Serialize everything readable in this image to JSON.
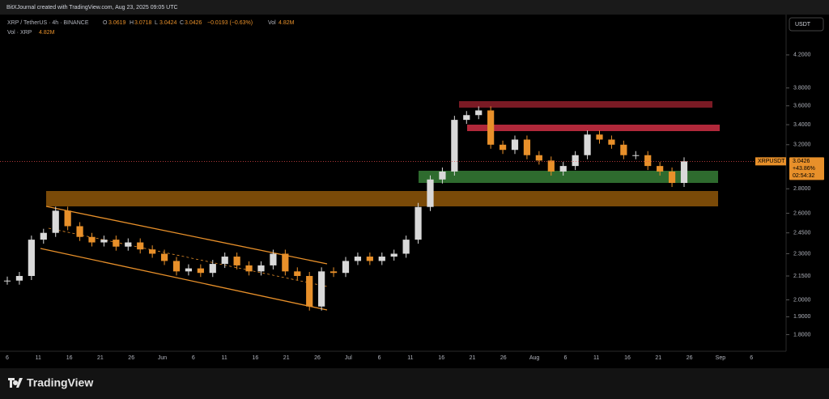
{
  "header": {
    "credit": "BitXJournal created with TradingView.com, Aug 23, 2025 09:05 UTC"
  },
  "legend": {
    "symbol": "XRP / TetherUS · 4h · BINANCE",
    "o_label": "O",
    "open": "3.0619",
    "h_label": "H",
    "high": "3.0718",
    "l_label": "L",
    "low": "3.0424",
    "c_label": "C",
    "close": "3.0426",
    "change": "−0.0193 (−0.63%)",
    "vol_label": "Vol",
    "vol": "4.82M"
  },
  "volume_legend": {
    "label": "Vol · XRP",
    "value": "4.82M"
  },
  "currency": "USDT",
  "price_tag": {
    "symbol": "XRPUSDT",
    "price": "3.0426",
    "change": "+43.86%",
    "countdown": "02:54:32"
  },
  "chart_data": {
    "type": "candlestick",
    "closes": [
      2.12,
      2.15,
      2.4,
      2.45,
      2.62,
      2.5,
      2.42,
      2.38,
      2.4,
      2.35,
      2.38,
      2.33,
      2.3,
      2.25,
      2.18,
      2.2,
      2.17,
      2.23,
      2.28,
      2.22,
      2.18,
      2.22,
      2.3,
      2.18,
      2.15,
      1.96,
      2.18,
      2.17,
      2.25,
      2.28,
      2.25,
      2.28,
      2.3,
      2.4,
      2.65,
      2.88,
      2.95,
      3.45,
      3.5,
      3.55,
      3.2,
      3.15,
      3.25,
      3.1,
      3.05,
      2.95,
      3.0,
      3.1,
      3.3,
      3.25,
      3.2,
      3.1,
      3.1,
      3.0,
      2.95,
      2.85,
      3.0426
    ],
    "up_color": "#d9d9d9",
    "down_color": "#e8902a",
    "log_scale": true,
    "ylim": [
      1.72,
      4.7
    ],
    "yticks": [
      {
        "value": 4.2,
        "label": "4.2000"
      },
      {
        "value": 3.8,
        "label": "3.8000"
      },
      {
        "value": 3.6,
        "label": "3.6000"
      },
      {
        "value": 3.4,
        "label": "3.4000"
      },
      {
        "value": 3.2,
        "label": "3.2000"
      },
      {
        "value": 2.8,
        "label": "2.8000"
      },
      {
        "value": 2.6,
        "label": "2.6000"
      },
      {
        "value": 2.45,
        "label": "2.4500"
      },
      {
        "value": 2.3,
        "label": "2.3000"
      },
      {
        "value": 2.15,
        "label": "2.1500"
      },
      {
        "value": 2,
        "label": "2.0000"
      },
      {
        "value": 1.9,
        "label": "1.9000"
      },
      {
        "value": 1.8,
        "label": "1.8000"
      }
    ],
    "xtick_labels": [
      "6",
      "11",
      "16",
      "21",
      "26",
      "Jun",
      "6",
      "11",
      "16",
      "21",
      "26",
      "Jul",
      "6",
      "11",
      "16",
      "21",
      "26",
      "Aug",
      "6",
      "11",
      "16",
      "21",
      "26",
      "Sep",
      "6"
    ]
  },
  "footer": {
    "brand": "TradingView"
  }
}
